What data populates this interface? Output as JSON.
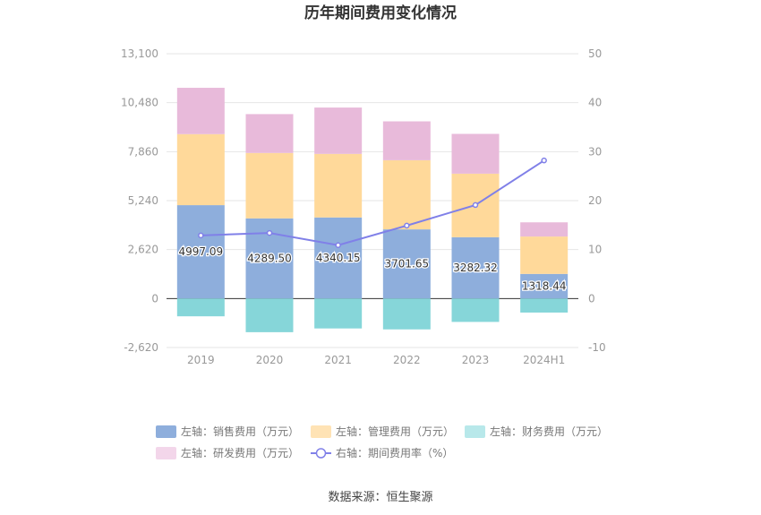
{
  "chart_data": {
    "type": "bar",
    "title": "历年期间费用变化情况",
    "categories": [
      "2019",
      "2020",
      "2021",
      "2022",
      "2023",
      "2024H1"
    ],
    "left_axis": {
      "ticks": [
        "13,100",
        "10,480",
        "7,860",
        "5,240",
        "2,620",
        "0",
        "-2,620"
      ],
      "ylim": [
        -2620,
        13100
      ]
    },
    "right_axis": {
      "ticks": [
        "50",
        "40",
        "30",
        "20",
        "10",
        "0",
        "-10"
      ],
      "ylim": [
        -10,
        50
      ]
    },
    "series": [
      {
        "name": "左轴：销售费用（万元）",
        "axis": "left",
        "stack": "pos",
        "color": "#8eaedc",
        "values": [
          4997.09,
          4289.5,
          4340.15,
          3701.65,
          3282.32,
          1318.44
        ],
        "labels": [
          "4997.09",
          "4289.50",
          "4340.15",
          "3701.65",
          "3282.32",
          "1318.44"
        ]
      },
      {
        "name": "左轴：管理费用（万元）",
        "axis": "left",
        "stack": "pos",
        "color": "#ffd99a",
        "values": [
          3800,
          3500,
          3400,
          3700,
          3400,
          2000
        ]
      },
      {
        "name": "左轴：财务费用（万元）",
        "axis": "left",
        "stack": "neg",
        "color": "#86d6d9",
        "values": [
          -950,
          -1800,
          -1600,
          -1650,
          -1250,
          -750
        ]
      },
      {
        "name": "左轴：研发费用（万元）",
        "axis": "left",
        "stack": "pos",
        "color": "#e8bada",
        "values": [
          2480,
          2080,
          2480,
          2080,
          2130,
          760
        ]
      },
      {
        "name": "右轴：期间费用率（%）",
        "axis": "right",
        "type": "line",
        "color": "#8080e8",
        "values": [
          12.9,
          13.4,
          10.9,
          14.9,
          19.1,
          28.2
        ]
      }
    ],
    "grid": true,
    "legend_position": "bottom"
  },
  "legend": [
    {
      "label": "左轴：销售费用（万元）",
      "color": "#8eaedc",
      "kind": "rect"
    },
    {
      "label": "左轴：管理费用（万元）",
      "color": "#ffe3b5",
      "kind": "rect"
    },
    {
      "label": "左轴：财务费用（万元）",
      "color": "#b8e8ea",
      "kind": "rect"
    },
    {
      "label": "左轴：研发费用（万元）",
      "color": "#f3d6ea",
      "kind": "rect"
    },
    {
      "label": "右轴：期间费用率（%）",
      "color": "#8080e8",
      "kind": "line"
    }
  ],
  "source": "数据来源：恒生聚源"
}
